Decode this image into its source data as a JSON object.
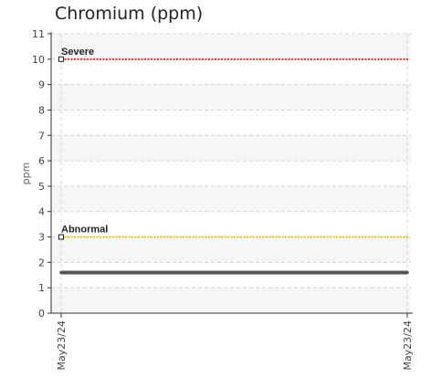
{
  "chart_data": {
    "type": "line",
    "title": "Chromium (ppm)",
    "ylabel": "ppm",
    "xlabel": "",
    "ylim": [
      0,
      11
    ],
    "yticks": [
      0,
      1,
      2,
      3,
      4,
      5,
      6,
      7,
      8,
      9,
      10,
      11
    ],
    "x": [
      "May23/24",
      "May23/24"
    ],
    "series": [
      {
        "values": [
          1.6,
          1.6
        ],
        "color": "#555555"
      }
    ],
    "thresholds": [
      {
        "label": "Severe",
        "value": 10,
        "color": "#e8332a"
      },
      {
        "label": "Abnormal",
        "value": 3,
        "color": "#f2c21b"
      }
    ],
    "grid": true,
    "banded_background": true
  }
}
